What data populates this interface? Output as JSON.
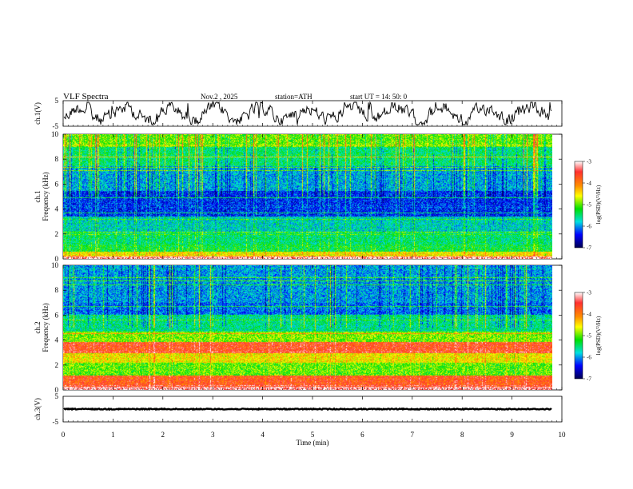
{
  "header": {
    "title": "VLF  Spectra",
    "date": "Nov.2  , 2025",
    "station": "station=ATH",
    "start": "start  UT  =   14: 50: 0"
  },
  "chart_data": {
    "type": "heatmap",
    "title": "VLF Spectra",
    "xlabel": "Time  (min)",
    "xlim": [
      0,
      10
    ],
    "x_ticks": [
      "0",
      "1",
      "2",
      "3",
      "4",
      "5",
      "6",
      "7",
      "8",
      "9",
      "10"
    ],
    "data_end_min": 9.8,
    "panels": [
      {
        "id": "ch1-waveform",
        "kind": "line",
        "ylabel": "ch.1(V)",
        "ylim": [
          -5,
          5
        ],
        "y_ticks": [
          "5",
          "-5"
        ]
      },
      {
        "id": "ch1-spectrogram",
        "kind": "heatmap",
        "ylabel_top": "ch.1",
        "ylabel": "Frequency  (kHz)",
        "ylim": [
          0,
          10
        ],
        "y_ticks": [
          "0",
          "2",
          "4",
          "6",
          "8",
          "10"
        ],
        "colorbar": {
          "label": "log(PSD)(V²/Hz)",
          "range": [
            -7,
            -3
          ],
          "ticks": [
            "-3",
            "-4",
            "-5",
            "-6",
            "-7"
          ]
        }
      },
      {
        "id": "ch2-spectrogram",
        "kind": "heatmap",
        "ylabel_top": "ch.2",
        "ylabel": "Frequency  (kHz)",
        "ylim": [
          0,
          10
        ],
        "y_ticks": [
          "0",
          "2",
          "4",
          "6",
          "8",
          "10"
        ],
        "colorbar": {
          "label": "log(PSD)(V²/Hz)",
          "range": [
            -7,
            -3
          ],
          "ticks": [
            "-3",
            "-4",
            "-5",
            "-6",
            "-7"
          ]
        }
      },
      {
        "id": "ch3-waveform",
        "kind": "line",
        "ylabel": "ch.3(V)",
        "ylim": [
          -5,
          5
        ],
        "y_ticks": [
          "5",
          "-5"
        ]
      }
    ]
  }
}
